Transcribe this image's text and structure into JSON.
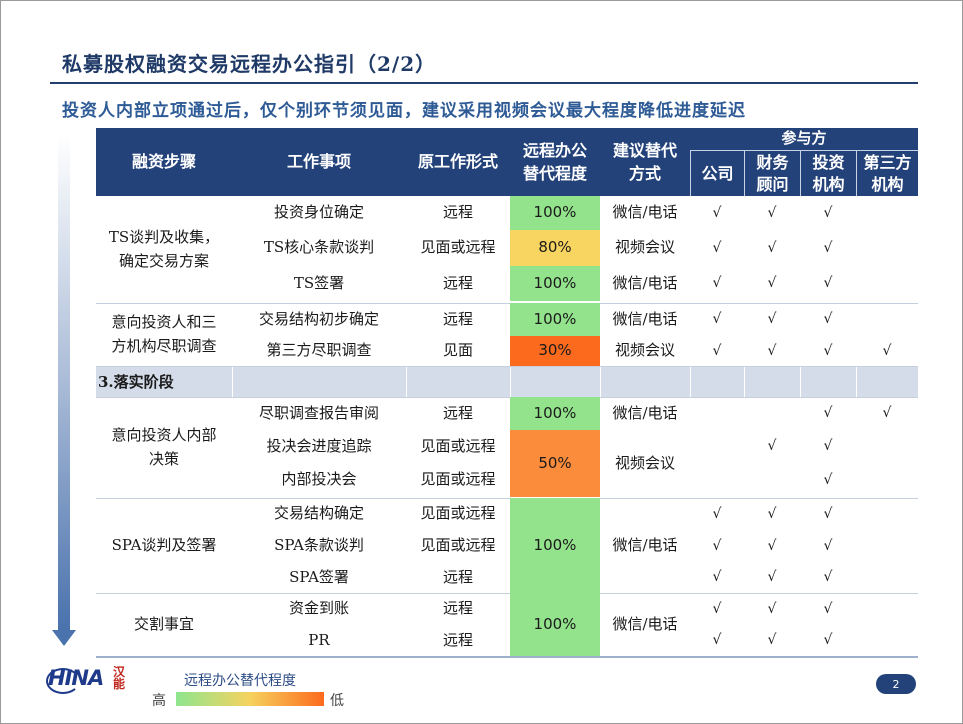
{
  "title": "私募股权融资交易远程办公指引（2/2）",
  "subtitle": "投资人内部立项通过后，仅个别环节须见面，建议采用视频会议最大程度降低进度延迟",
  "table": {
    "headers": {
      "step": "融资步骤",
      "task": "工作事项",
      "original": "原工作形式",
      "remote_l1": "远程办公",
      "remote_l2": "替代程度",
      "suggest_l1": "建议替代",
      "suggest_l2": "方式",
      "participants": "参与方",
      "company": "公司",
      "fa_l1": "财务",
      "fa_l2": "顾问",
      "inv_l1": "投资",
      "inv_l2": "机构",
      "third_l1": "第三方",
      "third_l2": "机构"
    },
    "phase": "3.落实阶段",
    "groups": [
      {
        "step_l1": "TS谈判及收集，",
        "step_l2": "确定交易方案"
      },
      {
        "step_l1": "意向投资人和三",
        "step_l2": "方机构尽职调查"
      },
      {
        "step_l1": "意向投资人内部",
        "step_l2": "决策"
      },
      {
        "step_l1": "SPA谈判及签署",
        "step_l2": ""
      },
      {
        "step_l1": "交割事宜",
        "step_l2": ""
      }
    ],
    "rows": [
      {
        "task": "投资身位确定",
        "original": "远程",
        "company": "√",
        "fa": "√",
        "inv": "√",
        "third": ""
      },
      {
        "task": "TS核心条款谈判",
        "original": "见面或远程",
        "company": "√",
        "fa": "√",
        "inv": "√",
        "third": ""
      },
      {
        "task": "TS签署",
        "original": "远程",
        "company": "√",
        "fa": "√",
        "inv": "√",
        "third": ""
      },
      {
        "task": "交易结构初步确定",
        "original": "远程",
        "company": "√",
        "fa": "√",
        "inv": "√",
        "third": ""
      },
      {
        "task": "第三方尽职调查",
        "original": "见面",
        "company": "√",
        "fa": "√",
        "inv": "√",
        "third": "√"
      },
      {
        "task": "尽职调查报告审阅",
        "original": "远程",
        "company": "",
        "fa": "",
        "inv": "√",
        "third": "√"
      },
      {
        "task": "投决会进度追踪",
        "original": "见面或远程",
        "company": "",
        "fa": "√",
        "inv": "√",
        "third": ""
      },
      {
        "task": "内部投决会",
        "original": "见面或远程",
        "company": "",
        "fa": "",
        "inv": "√",
        "third": ""
      },
      {
        "task": "交易结构确定",
        "original": "见面或远程",
        "company": "√",
        "fa": "√",
        "inv": "√",
        "third": ""
      },
      {
        "task": "SPA条款谈判",
        "original": "见面或远程",
        "company": "√",
        "fa": "√",
        "inv": "√",
        "third": ""
      },
      {
        "task": "SPA签署",
        "original": "远程",
        "company": "√",
        "fa": "√",
        "inv": "√",
        "third": ""
      },
      {
        "task": "资金到账",
        "original": "远程",
        "company": "√",
        "fa": "√",
        "inv": "√",
        "third": ""
      },
      {
        "task": "PR",
        "original": "远程",
        "company": "√",
        "fa": "√",
        "inv": "√",
        "third": ""
      }
    ],
    "remote_blocks": [
      {
        "value": "100%",
        "color": "#92e38c"
      },
      {
        "value": "80%",
        "color": "#f8d460"
      },
      {
        "value": "100%",
        "color": "#92e38c"
      },
      {
        "value": "100%",
        "color": "#92e38c"
      },
      {
        "value": "30%",
        "color": "#fc6a1d"
      },
      {
        "value": "100%",
        "color": "#92e38c"
      },
      {
        "value": "50%",
        "color": "#fb8c3c"
      },
      {
        "value": "100%",
        "color": "#92e38c"
      },
      {
        "value": "100%",
        "color": "#92e38c"
      }
    ],
    "suggest_blocks": [
      "微信/电话",
      "视频会议",
      "微信/电话",
      "微信/电话",
      "视频会议",
      "微信/电话",
      "视频会议",
      "微信/电话",
      "微信/电话"
    ]
  },
  "legend": {
    "title": "远程办公替代程度",
    "high": "高",
    "low": "低"
  },
  "logo": {
    "text": "HINA",
    "cn": "汉能"
  },
  "page_number": "2",
  "colors": {
    "header_bg": "#24427a",
    "title": "#1f3a67",
    "subtitle": "#2e5b96",
    "phase_bg": "#d4dbe9"
  }
}
